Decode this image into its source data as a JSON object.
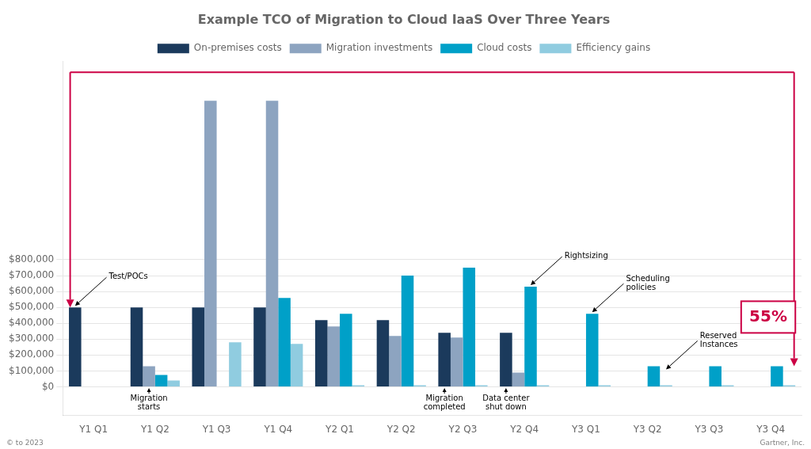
{
  "chart_data": {
    "type": "bar",
    "title": "Example TCO of Migration to Cloud IaaS Over Three Years",
    "categories": [
      "Y1 Q1",
      "Y1 Q2",
      "Y1 Q3",
      "Y1 Q4",
      "Y2 Q1",
      "Y2 Q2",
      "Y2 Q3",
      "Y2 Q4",
      "Y3 Q1",
      "Y3 Q2",
      "Y3 Q3",
      "Y3 Q4"
    ],
    "series": [
      {
        "name": "On-premises costs",
        "color": "#1b3a5c",
        "values": [
          500000,
          500000,
          500000,
          500000,
          420000,
          420000,
          340000,
          340000,
          0,
          0,
          0,
          0
        ]
      },
      {
        "name": "Migration investments",
        "color": "#8da4c0",
        "values": [
          0,
          130000,
          1800000,
          1800000,
          380000,
          320000,
          310000,
          90000,
          0,
          0,
          0,
          0
        ]
      },
      {
        "name": "Cloud costs",
        "color": "#00a0c8",
        "values": [
          0,
          75000,
          0,
          560000,
          460000,
          700000,
          750000,
          630000,
          460000,
          130000,
          130000,
          130000
        ]
      },
      {
        "name": "Efficiency gains",
        "color": "#90cce0",
        "values": [
          0,
          40000,
          280000,
          270000,
          10000,
          10000,
          10000,
          10000,
          10000,
          10000,
          10000,
          10000
        ]
      }
    ],
    "ylim": [
      -180000,
      2050000
    ],
    "yticks": [
      {
        "value": 0,
        "label": "$0"
      },
      {
        "value": 100000,
        "label": "$100,000"
      },
      {
        "value": 200000,
        "label": "$200,000"
      },
      {
        "value": 300000,
        "label": "$300,000"
      },
      {
        "value": 400000,
        "label": "$400,000"
      },
      {
        "value": 500000,
        "label": "$500,000"
      },
      {
        "value": 600000,
        "label": "$600,000"
      },
      {
        "value": 700000,
        "label": "$700,000"
      },
      {
        "value": 800000,
        "label": "$800,000"
      }
    ],
    "grid": true,
    "legend": "top",
    "annotations": [
      {
        "text": "Test/POCs",
        "category": "Y1 Q1",
        "series": "On-premises costs",
        "y": 500000
      },
      {
        "text": "Migration\nstarts",
        "category": "Y1 Q2",
        "series": "Migration investments",
        "y": -8000
      },
      {
        "text": "Migration\ncompleted",
        "category": "Y2 Q3",
        "series": "On-premises costs",
        "y": -8000
      },
      {
        "text": "Data center\nshut down",
        "category": "Y2 Q4",
        "series": "On-premises costs",
        "y": -8000
      },
      {
        "text": "Rightsizing",
        "category": "Y2 Q4",
        "series": "Cloud costs",
        "y": 630000
      },
      {
        "text": "Scheduling\npolicies",
        "category": "Y3 Q1",
        "series": "Cloud costs",
        "y": 460000
      },
      {
        "text": "Reserved\nInstances",
        "category": "Y3 Q2",
        "series": "Efficiency gains",
        "y": 100000
      }
    ],
    "bracket": {
      "label": "55%",
      "color": "#cc0044",
      "top": 1980000,
      "from": {
        "category": "Y1 Q1",
        "y": 500000
      },
      "to": {
        "category": "Y3 Q4",
        "y": 130000
      }
    },
    "footnotes": [
      "© to 2023",
      "Gartner, Inc."
    ]
  }
}
